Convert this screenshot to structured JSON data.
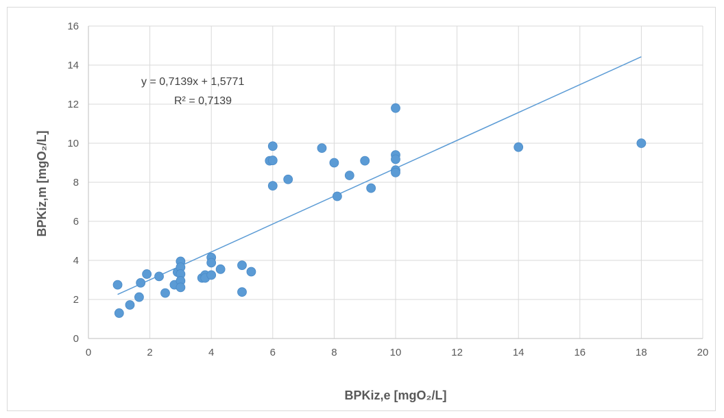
{
  "chart_data": {
    "type": "scatter",
    "title": "",
    "xlabel": "BPKiz,e [mgO₂/L]",
    "ylabel": "BPKiz,m [mgO₂/L]",
    "xlim": [
      0,
      20
    ],
    "ylim": [
      0,
      16
    ],
    "xticks": [
      0,
      2,
      4,
      6,
      8,
      10,
      12,
      14,
      16,
      18,
      20
    ],
    "yticks": [
      0,
      2,
      4,
      6,
      8,
      10,
      12,
      14,
      16
    ],
    "grid": true,
    "legend": "none",
    "marker_color": "#5b9bd5",
    "trendline": {
      "color": "#5b9bd5",
      "slope": 0.7139,
      "intercept": 1.5771,
      "x_range": [
        0.95,
        18
      ],
      "equation_label": "y = 0,7139x + 1,5771",
      "r2_label": "R² = 0,7139"
    },
    "series": [
      {
        "points": [
          [
            0.95,
            2.75
          ],
          [
            1.0,
            1.3
          ],
          [
            1.35,
            1.72
          ],
          [
            1.65,
            2.12
          ],
          [
            1.7,
            2.85
          ],
          [
            1.9,
            3.3
          ],
          [
            2.3,
            3.18
          ],
          [
            2.5,
            2.33
          ],
          [
            2.8,
            2.75
          ],
          [
            2.9,
            3.4
          ],
          [
            3.0,
            3.95
          ],
          [
            3.0,
            3.65
          ],
          [
            3.0,
            3.3
          ],
          [
            3.0,
            2.95
          ],
          [
            3.0,
            2.62
          ],
          [
            3.7,
            3.1
          ],
          [
            3.8,
            3.25
          ],
          [
            3.8,
            3.1
          ],
          [
            4.0,
            4.15
          ],
          [
            4.0,
            3.88
          ],
          [
            4.0,
            3.25
          ],
          [
            4.3,
            3.55
          ],
          [
            5.0,
            3.75
          ],
          [
            5.0,
            2.38
          ],
          [
            5.3,
            3.42
          ],
          [
            5.9,
            9.1
          ],
          [
            6.0,
            9.85
          ],
          [
            6.0,
            9.12
          ],
          [
            6.0,
            7.82
          ],
          [
            6.5,
            8.15
          ],
          [
            7.6,
            9.75
          ],
          [
            8.0,
            9.0
          ],
          [
            8.1,
            7.28
          ],
          [
            8.5,
            8.35
          ],
          [
            9.0,
            9.1
          ],
          [
            9.2,
            7.7
          ],
          [
            10.0,
            11.8
          ],
          [
            10.0,
            9.4
          ],
          [
            10.0,
            9.18
          ],
          [
            10.0,
            8.62
          ],
          [
            10.0,
            8.5
          ],
          [
            14.0,
            9.8
          ],
          [
            18.0,
            10.0
          ]
        ]
      }
    ]
  }
}
